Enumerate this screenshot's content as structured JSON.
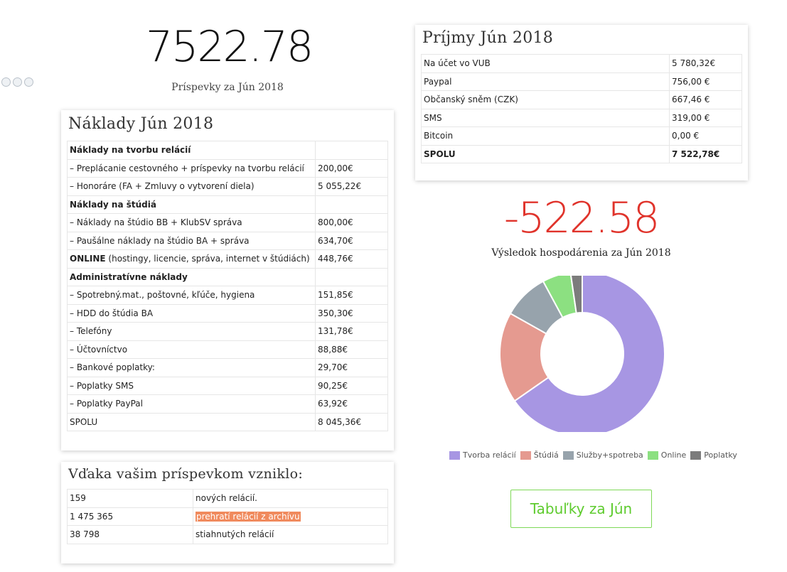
{
  "top_total": {
    "value": "7522.78",
    "caption": "Príspevky za Jún 2018"
  },
  "share_icons": [
    "share-icon",
    "info-icon",
    "close-icon"
  ],
  "naklady": {
    "title": "Náklady Jún 2018",
    "rows": [
      {
        "label": "Náklady na tvorbu relácií",
        "value": "",
        "bold": true
      },
      {
        "label": "– Preplácanie cestovného + príspevky na tvorbu relácií",
        "value": "200,00€"
      },
      {
        "label": "– Honoráre (FA + Zmluvy o vytvorení diela)",
        "value": "5 055,22€"
      },
      {
        "label": "Náklady na štúdiá",
        "value": "",
        "bold": true
      },
      {
        "label": "– Náklady na štúdio BB + KlubSV správa",
        "value": "800,00€"
      },
      {
        "label": "– Paušálne náklady na štúdio BA + správa",
        "value": "634,70€"
      },
      {
        "label": "ONLINE",
        "suffix": " (hostingy, licencie, správa, internet v štúdiách)",
        "value": "448,76€",
        "bold_prefix": true
      },
      {
        "label": "Administratívne náklady",
        "value": "",
        "bold": true
      },
      {
        "label": "– Spotrebný.mat., poštovné, kľúče, hygiena",
        "value": "151,85€"
      },
      {
        "label": "– HDD do štúdia BA",
        "value": "350,30€"
      },
      {
        "label": "– Telefóny",
        "value": "131,78€"
      },
      {
        "label": "– Účtovníctvo",
        "value": "88,88€"
      },
      {
        "label": "– Bankové poplatky:",
        "value": "29,70€"
      },
      {
        "label": "– Poplatky SMS",
        "value": "90,25€"
      },
      {
        "label": "– Poplatky PayPal",
        "value": "63,92€"
      },
      {
        "label": "SPOLU",
        "value": "8 045,36€"
      }
    ]
  },
  "prijmy": {
    "title": "Príjmy Jún 2018",
    "rows": [
      {
        "label": "Na účet vo VUB",
        "value": "5 780,32€"
      },
      {
        "label": "Paypal",
        "value": "756,00 €"
      },
      {
        "label": "Občanský sněm (CZK)",
        "value": "667,46 €"
      },
      {
        "label": "SMS",
        "value": "319,00 €"
      },
      {
        "label": "Bitcoin",
        "value": "0,00 €"
      },
      {
        "label": "SPOLU",
        "value": "7 522,78€",
        "bold": true
      }
    ]
  },
  "result": {
    "value": "-522.58",
    "caption": "Výsledok hospodárenia za Jún 2018",
    "color": "#e0332b"
  },
  "chart_data": {
    "type": "pie",
    "donut": true,
    "labels": [
      "Tvorba relácií",
      "Štúdiá",
      "Služby+spotreba",
      "Online",
      "Poplatky"
    ],
    "values": [
      5255.22,
      1434.7,
      722.81,
      448.76,
      183.87
    ],
    "colors": [
      "#a796e3",
      "#e59a90",
      "#97a3ac",
      "#8ce081",
      "#7c7c7c"
    ],
    "legend_position": "bottom"
  },
  "vdaka": {
    "title": "Vďaka vašim príspevkom vzniklo:",
    "rows": [
      {
        "num": "159",
        "text": "nových relácií.",
        "highlight": false
      },
      {
        "num": "1 475 365",
        "text": "prehratí relácií z archívu",
        "highlight": true
      },
      {
        "num": "38 798",
        "text": "stiahnutých relácií",
        "highlight": false
      }
    ]
  },
  "button": {
    "label": "Tabuľky za Jún"
  }
}
